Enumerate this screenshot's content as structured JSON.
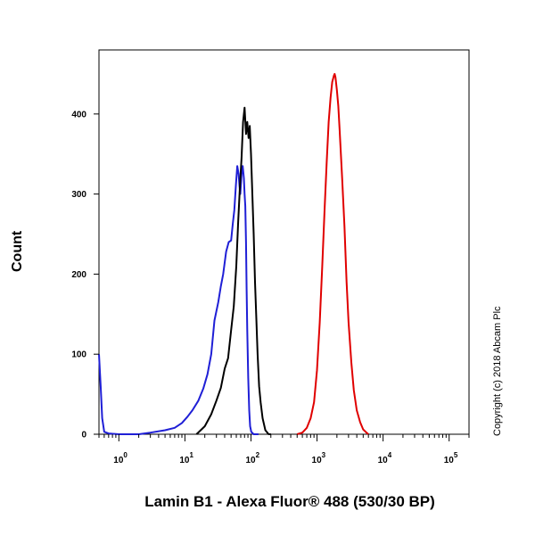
{
  "chart_data": {
    "type": "line",
    "title": "",
    "xlabel": "Lamin B1 - Alexa Fluor® 488 (530/30 BP)",
    "ylabel": "Count",
    "x_scale": "log",
    "xlim": [
      0.5,
      200000
    ],
    "ylim": [
      0,
      480
    ],
    "grid": false,
    "legend": "none",
    "x_ticks": [
      {
        "value": 1,
        "base": "10",
        "exp": "0"
      },
      {
        "value": 10,
        "base": "10",
        "exp": "1"
      },
      {
        "value": 100,
        "base": "10",
        "exp": "2"
      },
      {
        "value": 1000,
        "base": "10",
        "exp": "3"
      },
      {
        "value": 10000,
        "base": "10",
        "exp": "4"
      },
      {
        "value": 100000,
        "base": "10",
        "exp": "5"
      }
    ],
    "y_ticks": [
      0,
      100,
      200,
      300,
      400
    ],
    "series": [
      {
        "color": "#1f1fd6",
        "points": [
          [
            0.5,
            100
          ],
          [
            0.53,
            60
          ],
          [
            0.56,
            20
          ],
          [
            0.6,
            3
          ],
          [
            0.7,
            1
          ],
          [
            1,
            0
          ],
          [
            2,
            0
          ],
          [
            3,
            2
          ],
          [
            5,
            5
          ],
          [
            7,
            8
          ],
          [
            9,
            14
          ],
          [
            11,
            22
          ],
          [
            13,
            30
          ],
          [
            16,
            42
          ],
          [
            19,
            57
          ],
          [
            22,
            75
          ],
          [
            25,
            100
          ],
          [
            28,
            142
          ],
          [
            32,
            165
          ],
          [
            35,
            185
          ],
          [
            38,
            200
          ],
          [
            42,
            228
          ],
          [
            46,
            240
          ],
          [
            50,
            242
          ],
          [
            53,
            262
          ],
          [
            56,
            280
          ],
          [
            59,
            310
          ],
          [
            62,
            335
          ],
          [
            65,
            325
          ],
          [
            67,
            310
          ],
          [
            69,
            300
          ],
          [
            72,
            325
          ],
          [
            75,
            335
          ],
          [
            78,
            320
          ],
          [
            80,
            300
          ],
          [
            82,
            285
          ],
          [
            84,
            240
          ],
          [
            86,
            180
          ],
          [
            88,
            130
          ],
          [
            91,
            70
          ],
          [
            94,
            30
          ],
          [
            97,
            10
          ],
          [
            101,
            3
          ],
          [
            110,
            0
          ],
          [
            130,
            0
          ]
        ]
      },
      {
        "color": "#000000",
        "points": [
          [
            15,
            0
          ],
          [
            20,
            10
          ],
          [
            25,
            25
          ],
          [
            30,
            42
          ],
          [
            35,
            58
          ],
          [
            40,
            82
          ],
          [
            45,
            95
          ],
          [
            50,
            130
          ],
          [
            55,
            160
          ],
          [
            60,
            210
          ],
          [
            64,
            265
          ],
          [
            68,
            310
          ],
          [
            72,
            345
          ],
          [
            76,
            390
          ],
          [
            80,
            408
          ],
          [
            84,
            375
          ],
          [
            88,
            390
          ],
          [
            92,
            370
          ],
          [
            96,
            385
          ],
          [
            100,
            350
          ],
          [
            105,
            300
          ],
          [
            110,
            250
          ],
          [
            115,
            190
          ],
          [
            120,
            150
          ],
          [
            126,
            100
          ],
          [
            133,
            60
          ],
          [
            140,
            40
          ],
          [
            150,
            20
          ],
          [
            165,
            5
          ],
          [
            185,
            0
          ],
          [
            200,
            0
          ]
        ]
      },
      {
        "color": "#e00000",
        "points": [
          [
            500,
            0
          ],
          [
            600,
            2
          ],
          [
            700,
            8
          ],
          [
            800,
            20
          ],
          [
            900,
            40
          ],
          [
            1000,
            80
          ],
          [
            1100,
            140
          ],
          [
            1200,
            210
          ],
          [
            1300,
            280
          ],
          [
            1400,
            340
          ],
          [
            1500,
            390
          ],
          [
            1600,
            420
          ],
          [
            1700,
            440
          ],
          [
            1800,
            448
          ],
          [
            1850,
            450
          ],
          [
            1900,
            446
          ],
          [
            2000,
            430
          ],
          [
            2100,
            410
          ],
          [
            2200,
            380
          ],
          [
            2400,
            320
          ],
          [
            2600,
            260
          ],
          [
            2800,
            190
          ],
          [
            3000,
            140
          ],
          [
            3300,
            90
          ],
          [
            3600,
            55
          ],
          [
            4000,
            30
          ],
          [
            4500,
            15
          ],
          [
            5000,
            6
          ],
          [
            5600,
            2
          ],
          [
            6000,
            0
          ]
        ]
      }
    ]
  },
  "copyright": "Copyright (c) 2018 Abcam Plc"
}
